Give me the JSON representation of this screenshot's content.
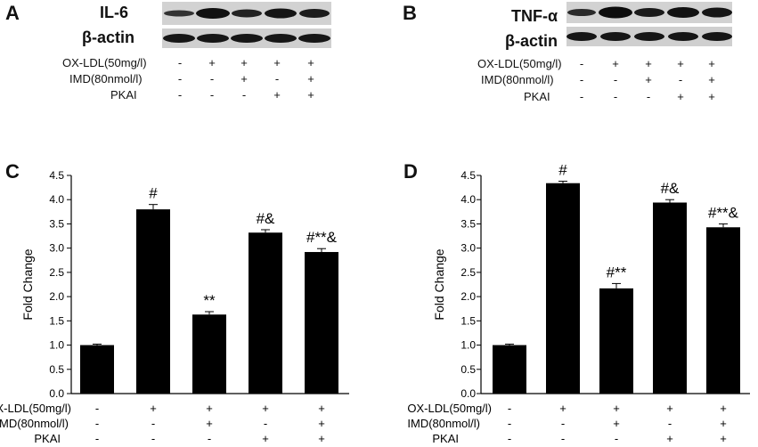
{
  "panels": {
    "a": "A",
    "b": "B",
    "c": "C",
    "d": "D"
  },
  "blots": {
    "left": {
      "target": "IL-6",
      "control": "β-actin"
    },
    "right": {
      "target": "TNF-α",
      "control": "β-actin"
    }
  },
  "conditions": {
    "ox_ldl": "OX-LDL(50mg/l)",
    "imd": "IMD(80nmol/l)",
    "pkai": "PKAI",
    "signs": [
      [
        "-",
        "+",
        "+",
        "+",
        "+"
      ],
      [
        "-",
        "-",
        "+",
        "-",
        "+"
      ],
      [
        "-",
        "-",
        "-",
        "+",
        "+"
      ]
    ]
  },
  "colors": {
    "bar": "#000000",
    "band": "#1a1a1a",
    "blot_bg": "#d2d2d2"
  },
  "chart_data": [
    {
      "type": "bar",
      "panel": "C",
      "ylabel": "Fold Change",
      "ylim": [
        0,
        4.5
      ],
      "yticks": [
        "0.0",
        "0.5",
        "1.0",
        "1.5",
        "2.0",
        "2.5",
        "3.0",
        "3.5",
        "4.0",
        "4.5"
      ],
      "values": [
        1.0,
        3.8,
        1.63,
        3.32,
        2.92
      ],
      "errors": [
        0.02,
        0.1,
        0.06,
        0.06,
        0.07
      ],
      "annotations": [
        "",
        "#",
        "**",
        "#&",
        "#**&"
      ]
    },
    {
      "type": "bar",
      "panel": "D",
      "ylabel": "Fold Change",
      "ylim": [
        0,
        4.5
      ],
      "yticks": [
        "0.0",
        "0.5",
        "1.0",
        "1.5",
        "2.0",
        "2.5",
        "3.0",
        "3.5",
        "4.0",
        "4.5"
      ],
      "values": [
        1.0,
        4.34,
        2.17,
        3.94,
        3.43
      ],
      "errors": [
        0.02,
        0.04,
        0.1,
        0.06,
        0.07
      ],
      "annotations": [
        "",
        "#",
        "#**",
        "#&",
        "#**&"
      ]
    }
  ]
}
